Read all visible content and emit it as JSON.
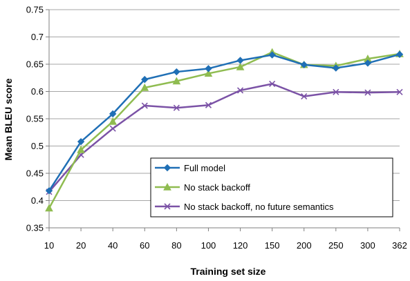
{
  "chart_data": {
    "type": "line",
    "title": "",
    "xlabel": "Training set size",
    "ylabel": "Mean BLEU score",
    "categories": [
      "10",
      "20",
      "40",
      "60",
      "80",
      "100",
      "120",
      "150",
      "200",
      "250",
      "300",
      "362"
    ],
    "ylim": [
      0.35,
      0.75
    ],
    "yticks": [
      "0.35",
      "0.4",
      "0.45",
      "0.5",
      "0.55",
      "0.6",
      "0.65",
      "0.7",
      "0.75"
    ],
    "grid": "horizontal",
    "legend_position": "bottom-right",
    "series": [
      {
        "name": "Full model",
        "color": "#1f6fb5",
        "marker": "diamond",
        "values": [
          0.418,
          0.508,
          0.559,
          0.622,
          0.636,
          0.642,
          0.657,
          0.667,
          0.649,
          0.643,
          0.652,
          0.668
        ]
      },
      {
        "name": "No stack backoff",
        "color": "#8fbc50",
        "marker": "triangle",
        "values": [
          0.386,
          0.493,
          0.545,
          0.607,
          0.619,
          0.633,
          0.645,
          0.672,
          0.649,
          0.647,
          0.66,
          0.669
        ]
      },
      {
        "name": "No stack backoff, no future semantics",
        "color": "#7b52a6",
        "marker": "x",
        "values": [
          0.416,
          0.484,
          0.532,
          0.574,
          0.57,
          0.575,
          0.602,
          0.614,
          0.591,
          0.599,
          0.598,
          0.599
        ]
      }
    ]
  }
}
